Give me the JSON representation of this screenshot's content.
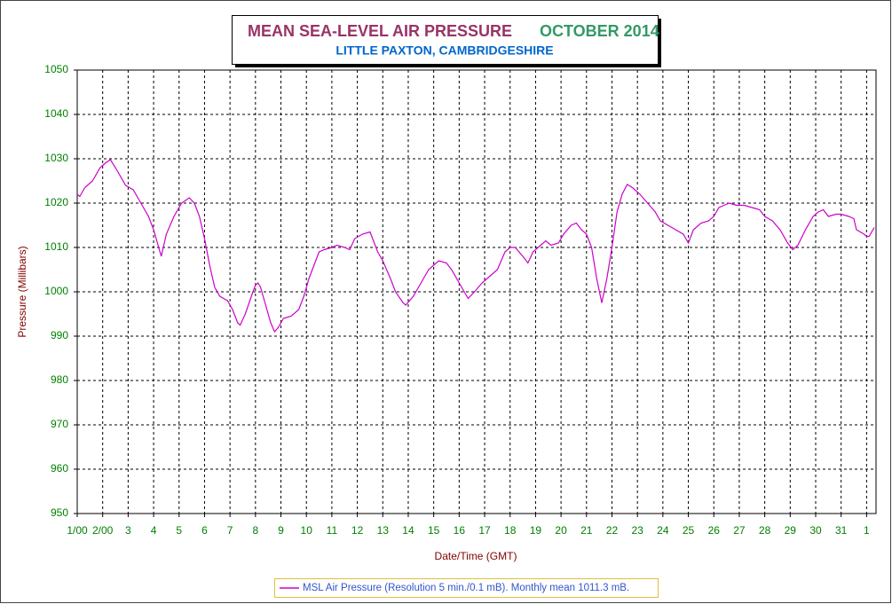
{
  "chart_data": {
    "type": "line",
    "title": "MEAN SEA-LEVEL AIR PRESSURE",
    "title_month": "OCTOBER 2014",
    "subtitle": "LITTLE PAXTON, CAMBRIDGESHIRE",
    "x_label": "Date/Time (GMT)",
    "y_label": "Pressure (Millibars)",
    "grid": true,
    "xlim": [
      0,
      31.37
    ],
    "ylim": [
      950,
      1050
    ],
    "yticks": [
      950,
      960,
      970,
      980,
      990,
      1000,
      1010,
      1020,
      1030,
      1040,
      1050
    ],
    "xticks": [
      {
        "value": 0,
        "label": "1/00"
      },
      {
        "value": 1,
        "label": "2/00"
      },
      {
        "value": 2,
        "label": "3"
      },
      {
        "value": 3,
        "label": "4"
      },
      {
        "value": 4,
        "label": "5"
      },
      {
        "value": 5,
        "label": "6"
      },
      {
        "value": 6,
        "label": "7"
      },
      {
        "value": 7,
        "label": "8"
      },
      {
        "value": 8,
        "label": "9"
      },
      {
        "value": 9,
        "label": "10"
      },
      {
        "value": 10,
        "label": "11"
      },
      {
        "value": 11,
        "label": "12"
      },
      {
        "value": 12,
        "label": "13"
      },
      {
        "value": 13,
        "label": "14"
      },
      {
        "value": 14,
        "label": "15"
      },
      {
        "value": 15,
        "label": "16"
      },
      {
        "value": 16,
        "label": "17"
      },
      {
        "value": 17,
        "label": "18"
      },
      {
        "value": 18,
        "label": "19"
      },
      {
        "value": 19,
        "label": "20"
      },
      {
        "value": 20,
        "label": "21"
      },
      {
        "value": 21,
        "label": "22"
      },
      {
        "value": 22,
        "label": "23"
      },
      {
        "value": 23,
        "label": "24"
      },
      {
        "value": 24,
        "label": "25"
      },
      {
        "value": 25,
        "label": "26"
      },
      {
        "value": 26,
        "label": "27"
      },
      {
        "value": 27,
        "label": "28"
      },
      {
        "value": 28,
        "label": "29"
      },
      {
        "value": 29,
        "label": "30"
      },
      {
        "value": 30,
        "label": "31"
      },
      {
        "value": 31,
        "label": "1"
      }
    ],
    "x": [
      0,
      0.1,
      0.3,
      0.6,
      0.9,
      1.1,
      1.3,
      1.5,
      1.7,
      1.9,
      2.2,
      2.5,
      2.8,
      3.0,
      3.2,
      3.3,
      3.5,
      3.8,
      4.1,
      4.4,
      4.6,
      4.8,
      5.0,
      5.2,
      5.4,
      5.6,
      5.9,
      6.1,
      6.3,
      6.4,
      6.6,
      6.9,
      7.0,
      7.1,
      7.2,
      7.4,
      7.6,
      7.75,
      7.9,
      8.1,
      8.4,
      8.7,
      8.9,
      9.1,
      9.3,
      9.5,
      9.7,
      10.0,
      10.2,
      10.5,
      10.7,
      10.9,
      11.2,
      11.5,
      11.6,
      11.8,
      12.0,
      12.3,
      12.5,
      12.8,
      12.9,
      13.2,
      13.5,
      13.8,
      14.0,
      14.2,
      14.5,
      14.7,
      15.0,
      15.2,
      15.35,
      15.6,
      15.9,
      16.2,
      16.5,
      16.8,
      17.0,
      17.2,
      17.5,
      17.7,
      17.9,
      18.2,
      18.4,
      18.6,
      18.9,
      19.1,
      19.4,
      19.6,
      19.8,
      20.0,
      20.2,
      20.4,
      20.6,
      20.8,
      21.0,
      21.2,
      21.4,
      21.6,
      21.8,
      22.1,
      22.4,
      22.7,
      22.9,
      23.2,
      23.5,
      23.8,
      24.0,
      24.2,
      24.5,
      24.8,
      25.0,
      25.2,
      25.4,
      25.6,
      25.9,
      26.2,
      26.5,
      26.8,
      27.0,
      27.3,
      27.6,
      27.9,
      28.1,
      28.3,
      28.6,
      28.9,
      29.1,
      29.3,
      29.5,
      29.8,
      30.0,
      30.3,
      30.5,
      30.6,
      30.9,
      31.0,
      31.1,
      31.3
    ],
    "series": [
      {
        "name": "MSL Air Pressure (Resolution 5 min./0.1 mB). Monthly mean 1011.3 mB.",
        "color": "#cc00cc",
        "values": [
          1022,
          1021.5,
          1023.5,
          1025,
          1028,
          1029,
          1029.8,
          1028,
          1026,
          1024,
          1023,
          1020,
          1017,
          1014,
          1010,
          1008,
          1013,
          1017,
          1020,
          1021.2,
          1020,
          1017,
          1012,
          1006,
          1001,
          999,
          998,
          996,
          993,
          992.5,
          995,
          1000,
          1001.5,
          1002,
          1001,
          997,
          993,
          991,
          992,
          994,
          994.5,
          996,
          999,
          1003,
          1006,
          1009,
          1009.5,
          1010,
          1010.5,
          1010,
          1009.5,
          1012,
          1013,
          1013.5,
          1012,
          1009,
          1007,
          1003,
          1000,
          997.5,
          997,
          999,
          1002,
          1005,
          1006,
          1007,
          1006.5,
          1005,
          1002,
          1000,
          998.5,
          1000,
          1002,
          1003.5,
          1005,
          1009,
          1010,
          1010,
          1008,
          1006.5,
          1009,
          1010.5,
          1011.5,
          1010.5,
          1011,
          1013,
          1015,
          1015.5,
          1014,
          1013,
          1010,
          1003,
          997.5,
          1003,
          1010,
          1018,
          1022,
          1024.2,
          1023.5,
          1022,
          1020,
          1018,
          1016,
          1015,
          1014,
          1013,
          1011,
          1014,
          1015.5,
          1016,
          1017,
          1019,
          1019.5,
          1020,
          1019.5,
          1019.5,
          1019,
          1018.5,
          1017,
          1016,
          1014,
          1011,
          1009.5,
          1010.5,
          1014,
          1017,
          1018,
          1018.5,
          1017,
          1017.5,
          1017.5,
          1017,
          1016.5,
          1014,
          1013,
          1012.5,
          1012.5,
          1014.5
        ]
      }
    ]
  }
}
